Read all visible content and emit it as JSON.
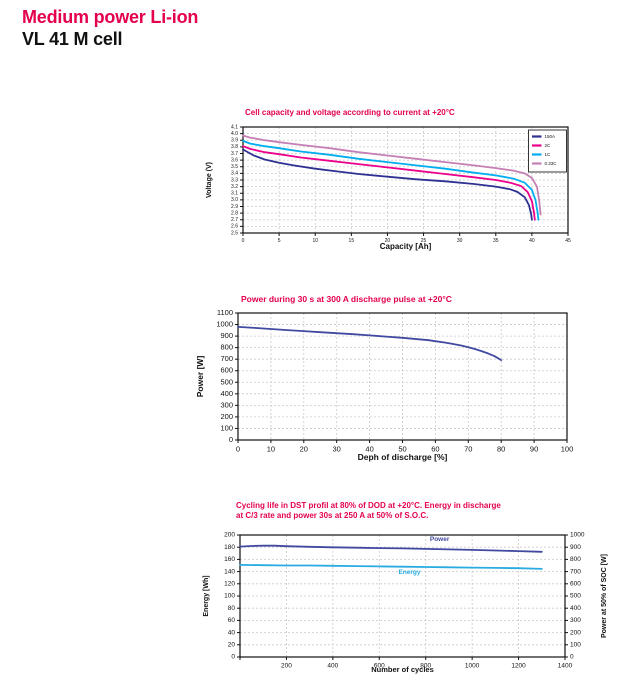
{
  "page": {
    "title_line1": "Medium power Li-ion",
    "title_line2": "VL 41 M cell",
    "accent_color": "#e4004f"
  },
  "chart_data": [
    {
      "type": "line",
      "title": "Cell capacity and voltage according to current at +20°C",
      "xlabel": "Capacity [Ah]",
      "ylabel": "Voltage (V)",
      "xlim": [
        0,
        45
      ],
      "x_step": 5,
      "x_decimals": 0,
      "ylim": [
        2.5,
        4.1
      ],
      "y_step": 0.1,
      "y_decimals": 1,
      "grid": true,
      "legend_position": "top-right",
      "series": [
        {
          "name": "150A",
          "color": "#2e3192",
          "points": [
            [
              0,
              3.76
            ],
            [
              0.5,
              3.73
            ],
            [
              1.5,
              3.67
            ],
            [
              3,
              3.61
            ],
            [
              5,
              3.56
            ],
            [
              7,
              3.52
            ],
            [
              10,
              3.47
            ],
            [
              13,
              3.43
            ],
            [
              16,
              3.39
            ],
            [
              20,
              3.35
            ],
            [
              24,
              3.31
            ],
            [
              28,
              3.28
            ],
            [
              32,
              3.24
            ],
            [
              35,
              3.2
            ],
            [
              37,
              3.16
            ],
            [
              38,
              3.12
            ],
            [
              39,
              3.04
            ],
            [
              39.6,
              2.92
            ],
            [
              39.9,
              2.78
            ],
            [
              40,
              2.7
            ]
          ]
        },
        {
          "name": "2C",
          "color": "#ec008c",
          "points": [
            [
              0,
              3.81
            ],
            [
              1,
              3.77
            ],
            [
              3,
              3.72
            ],
            [
              5,
              3.69
            ],
            [
              8,
              3.64
            ],
            [
              12,
              3.59
            ],
            [
              16,
              3.54
            ],
            [
              20,
              3.49
            ],
            [
              24,
              3.44
            ],
            [
              28,
              3.39
            ],
            [
              32,
              3.34
            ],
            [
              35,
              3.3
            ],
            [
              37,
              3.26
            ],
            [
              38.5,
              3.21
            ],
            [
              39.4,
              3.12
            ],
            [
              40,
              2.98
            ],
            [
              40.3,
              2.8
            ],
            [
              40.4,
              2.7
            ]
          ]
        },
        {
          "name": "1C",
          "color": "#00aeef",
          "points": [
            [
              0,
              3.89
            ],
            [
              1,
              3.85
            ],
            [
              3,
              3.81
            ],
            [
              5,
              3.78
            ],
            [
              8,
              3.73
            ],
            [
              12,
              3.68
            ],
            [
              16,
              3.62
            ],
            [
              20,
              3.57
            ],
            [
              24,
              3.52
            ],
            [
              28,
              3.47
            ],
            [
              32,
              3.41
            ],
            [
              35,
              3.37
            ],
            [
              37.5,
              3.32
            ],
            [
              39,
              3.26
            ],
            [
              40,
              3.15
            ],
            [
              40.5,
              3.0
            ],
            [
              40.8,
              2.8
            ],
            [
              40.9,
              2.7
            ]
          ]
        },
        {
          "name": "0.33C",
          "color": "#c57fb4",
          "points": [
            [
              0,
              3.97
            ],
            [
              1,
              3.94
            ],
            [
              3,
              3.9
            ],
            [
              5,
              3.87
            ],
            [
              8,
              3.83
            ],
            [
              12,
              3.78
            ],
            [
              16,
              3.72
            ],
            [
              20,
              3.67
            ],
            [
              24,
              3.62
            ],
            [
              28,
              3.57
            ],
            [
              32,
              3.52
            ],
            [
              35,
              3.48
            ],
            [
              37.5,
              3.44
            ],
            [
              39,
              3.4
            ],
            [
              40,
              3.33
            ],
            [
              40.7,
              3.2
            ],
            [
              41,
              3.0
            ],
            [
              41.2,
              2.78
            ]
          ]
        }
      ]
    },
    {
      "type": "line",
      "title": "Power during 30 s at 300 A discharge pulse at +20°C",
      "xlabel": "Deph of discharge [%]",
      "ylabel": "Power [W]",
      "xlim": [
        0,
        100
      ],
      "x_step": 10,
      "x_decimals": 0,
      "ylim": [
        0,
        1100
      ],
      "y_step": 100,
      "y_decimals": 0,
      "grid": true,
      "series": [
        {
          "name": "Power",
          "color": "#4149a0",
          "points": [
            [
              0,
              980
            ],
            [
              5,
              971
            ],
            [
              10,
              961
            ],
            [
              15,
              952
            ],
            [
              20,
              943
            ],
            [
              25,
              934
            ],
            [
              30,
              925
            ],
            [
              35,
              916
            ],
            [
              40,
              906
            ],
            [
              45,
              896
            ],
            [
              50,
              885
            ],
            [
              55,
              872
            ],
            [
              58,
              864
            ],
            [
              60,
              856
            ],
            [
              63,
              844
            ],
            [
              65,
              834
            ],
            [
              68,
              818
            ],
            [
              70,
              804
            ],
            [
              72,
              788
            ],
            [
              74,
              770
            ],
            [
              76,
              750
            ],
            [
              78,
              726
            ],
            [
              80,
              692
            ]
          ]
        }
      ]
    },
    {
      "type": "line",
      "title": "Cycling life in DST profil at 80% of DOD at +20°C. Energy in discharge at C/3 rate and power 30s at 250 A at 50% of S.O.C.",
      "title_lines": [
        "Cycling life in DST profil at 80% of DOD at +20°C. Energy in discharge",
        "at C/3 rate and power 30s at 250 A at 50% of S.O.C."
      ],
      "xlabel": "Number of cycles",
      "ylabel": "Energy [Wh]",
      "ylabel_right": "Power at 50% of SOC [W]",
      "xlim": [
        0,
        1400
      ],
      "x_step": 200,
      "x_decimals": 0,
      "hide_min_x_label": true,
      "ylim": [
        0,
        200
      ],
      "y_step": 20,
      "y_decimals": 0,
      "y2lim": [
        0,
        1000
      ],
      "y2_step": 100,
      "grid": true,
      "series": [
        {
          "name": "Power",
          "axis": "right",
          "color": "#4149a0",
          "points": [
            [
              0,
              905
            ],
            [
              50,
              910
            ],
            [
              100,
              913
            ],
            [
              150,
              912
            ],
            [
              200,
              908
            ],
            [
              300,
              903
            ],
            [
              400,
              899
            ],
            [
              500,
              896
            ],
            [
              600,
              893
            ],
            [
              700,
              890
            ],
            [
              800,
              886
            ],
            [
              900,
              882
            ],
            [
              1000,
              878
            ],
            [
              1100,
              873
            ],
            [
              1200,
              868
            ],
            [
              1300,
              862
            ]
          ]
        },
        {
          "name": "Energy",
          "axis": "left",
          "color": "#29abe2",
          "points": [
            [
              0,
              151
            ],
            [
              100,
              150.5
            ],
            [
              200,
              150
            ],
            [
              300,
              150
            ],
            [
              400,
              149.5
            ],
            [
              500,
              149
            ],
            [
              600,
              148.5
            ],
            [
              700,
              148
            ],
            [
              800,
              147.5
            ],
            [
              900,
              147
            ],
            [
              1000,
              146.5
            ],
            [
              1100,
              146
            ],
            [
              1200,
              145.5
            ],
            [
              1300,
              144.5
            ]
          ]
        }
      ],
      "inline_labels": [
        {
          "text": "Power",
          "axis": "right",
          "x": 860,
          "y": 950,
          "color": "#4149a0"
        },
        {
          "text": "Energy",
          "axis": "left",
          "x": 730,
          "y": 136,
          "color": "#29abe2"
        }
      ]
    }
  ]
}
